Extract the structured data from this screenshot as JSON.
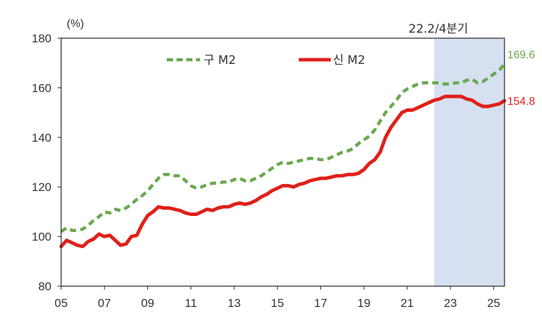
{
  "chart_data": {
    "type": "line",
    "title": "",
    "xlabel": "",
    "ylabel": "",
    "unit_label": "(%)",
    "x_ticks": [
      "05",
      "07",
      "09",
      "11",
      "13",
      "15",
      "17",
      "19",
      "21",
      "23",
      "25"
    ],
    "y_ticks": [
      "80",
      "100",
      "120",
      "140",
      "160",
      "180"
    ],
    "xlim": [
      2005.0,
      2025.5
    ],
    "ylim": [
      80,
      180
    ],
    "grid": false,
    "legend_position": "top-center",
    "shaded_region": {
      "label": "22.2/4분기",
      "x_start": 2022.25,
      "x_end": 2025.5,
      "color": "#d6e0f0"
    },
    "series": [
      {
        "name": "구 M2",
        "color": "#6aa84f",
        "style": "dashed",
        "end_label": "169.6",
        "points": [
          [
            2005.0,
            102.0
          ],
          [
            2005.25,
            103.5
          ],
          [
            2005.5,
            102.5
          ],
          [
            2005.75,
            102.5
          ],
          [
            2006.0,
            103.0
          ],
          [
            2006.25,
            104.5
          ],
          [
            2006.5,
            106.5
          ],
          [
            2006.75,
            108.0
          ],
          [
            2007.0,
            110.0
          ],
          [
            2007.25,
            109.5
          ],
          [
            2007.5,
            111.0
          ],
          [
            2007.75,
            110.5
          ],
          [
            2008.0,
            111.5
          ],
          [
            2008.25,
            113.0
          ],
          [
            2008.5,
            115.0
          ],
          [
            2008.75,
            116.5
          ],
          [
            2009.0,
            118.5
          ],
          [
            2009.25,
            121.0
          ],
          [
            2009.5,
            123.5
          ],
          [
            2009.75,
            125.0
          ],
          [
            2010.0,
            125.0
          ],
          [
            2010.25,
            124.5
          ],
          [
            2010.5,
            124.5
          ],
          [
            2010.75,
            122.5
          ],
          [
            2011.0,
            120.5
          ],
          [
            2011.25,
            119.5
          ],
          [
            2011.5,
            120.0
          ],
          [
            2011.75,
            121.0
          ],
          [
            2012.0,
            121.5
          ],
          [
            2012.25,
            121.5
          ],
          [
            2012.5,
            122.0
          ],
          [
            2012.75,
            122.0
          ],
          [
            2013.0,
            123.0
          ],
          [
            2013.25,
            123.5
          ],
          [
            2013.5,
            122.5
          ],
          [
            2013.75,
            122.5
          ],
          [
            2014.0,
            123.5
          ],
          [
            2014.25,
            124.5
          ],
          [
            2014.5,
            126.0
          ],
          [
            2014.75,
            127.5
          ],
          [
            2015.0,
            129.0
          ],
          [
            2015.25,
            130.0
          ],
          [
            2015.5,
            129.5
          ],
          [
            2015.75,
            130.0
          ],
          [
            2016.0,
            130.5
          ],
          [
            2016.25,
            131.0
          ],
          [
            2016.5,
            131.5
          ],
          [
            2016.75,
            131.5
          ],
          [
            2017.0,
            131.0
          ],
          [
            2017.25,
            131.0
          ],
          [
            2017.5,
            132.0
          ],
          [
            2017.75,
            133.0
          ],
          [
            2018.0,
            134.0
          ],
          [
            2018.25,
            134.5
          ],
          [
            2018.5,
            135.5
          ],
          [
            2018.75,
            137.5
          ],
          [
            2019.0,
            139.0
          ],
          [
            2019.25,
            140.5
          ],
          [
            2019.5,
            143.0
          ],
          [
            2019.75,
            146.5
          ],
          [
            2020.0,
            150.0
          ],
          [
            2020.25,
            152.5
          ],
          [
            2020.5,
            155.0
          ],
          [
            2020.75,
            158.0
          ],
          [
            2021.0,
            159.5
          ],
          [
            2021.25,
            160.5
          ],
          [
            2021.5,
            161.5
          ],
          [
            2021.75,
            162.0
          ],
          [
            2022.0,
            162.0
          ],
          [
            2022.25,
            162.0
          ],
          [
            2022.5,
            162.0
          ],
          [
            2022.75,
            161.5
          ],
          [
            2023.0,
            161.5
          ],
          [
            2023.25,
            162.0
          ],
          [
            2023.5,
            162.0
          ],
          [
            2023.75,
            163.0
          ],
          [
            2024.0,
            163.5
          ],
          [
            2024.25,
            162.0
          ],
          [
            2024.5,
            162.5
          ],
          [
            2024.75,
            164.0
          ],
          [
            2025.0,
            165.5
          ],
          [
            2025.25,
            167.0
          ],
          [
            2025.5,
            169.6
          ]
        ]
      },
      {
        "name": "신 M2",
        "color": "#e0201b",
        "style": "solid",
        "end_label": "154.8",
        "points": [
          [
            2005.0,
            96.0
          ],
          [
            2005.25,
            98.5
          ],
          [
            2005.5,
            97.5
          ],
          [
            2005.75,
            96.5
          ],
          [
            2006.0,
            96.0
          ],
          [
            2006.25,
            98.0
          ],
          [
            2006.5,
            99.0
          ],
          [
            2006.75,
            101.0
          ],
          [
            2007.0,
            100.0
          ],
          [
            2007.25,
            100.5
          ],
          [
            2007.5,
            98.5
          ],
          [
            2007.75,
            96.5
          ],
          [
            2008.0,
            97.0
          ],
          [
            2008.25,
            100.0
          ],
          [
            2008.5,
            100.5
          ],
          [
            2008.75,
            105.0
          ],
          [
            2009.0,
            108.5
          ],
          [
            2009.25,
            110.0
          ],
          [
            2009.5,
            112.0
          ],
          [
            2009.75,
            111.5
          ],
          [
            2010.0,
            111.5
          ],
          [
            2010.25,
            111.0
          ],
          [
            2010.5,
            110.5
          ],
          [
            2010.75,
            109.5
          ],
          [
            2011.0,
            109.0
          ],
          [
            2011.25,
            109.0
          ],
          [
            2011.5,
            110.0
          ],
          [
            2011.75,
            111.0
          ],
          [
            2012.0,
            110.5
          ],
          [
            2012.25,
            111.5
          ],
          [
            2012.5,
            112.0
          ],
          [
            2012.75,
            112.0
          ],
          [
            2013.0,
            113.0
          ],
          [
            2013.25,
            113.5
          ],
          [
            2013.5,
            113.0
          ],
          [
            2013.75,
            113.5
          ],
          [
            2014.0,
            114.5
          ],
          [
            2014.25,
            116.0
          ],
          [
            2014.5,
            117.0
          ],
          [
            2014.75,
            118.5
          ],
          [
            2015.0,
            119.5
          ],
          [
            2015.25,
            120.5
          ],
          [
            2015.5,
            120.5
          ],
          [
            2015.75,
            120.0
          ],
          [
            2016.0,
            121.0
          ],
          [
            2016.25,
            121.5
          ],
          [
            2016.5,
            122.5
          ],
          [
            2016.75,
            123.0
          ],
          [
            2017.0,
            123.5
          ],
          [
            2017.25,
            123.5
          ],
          [
            2017.5,
            124.0
          ],
          [
            2017.75,
            124.5
          ],
          [
            2018.0,
            124.5
          ],
          [
            2018.25,
            125.0
          ],
          [
            2018.5,
            125.0
          ],
          [
            2018.75,
            125.5
          ],
          [
            2019.0,
            127.0
          ],
          [
            2019.25,
            129.5
          ],
          [
            2019.5,
            131.0
          ],
          [
            2019.75,
            134.0
          ],
          [
            2020.0,
            140.0
          ],
          [
            2020.25,
            144.0
          ],
          [
            2020.5,
            147.0
          ],
          [
            2020.75,
            150.0
          ],
          [
            2021.0,
            151.0
          ],
          [
            2021.25,
            151.0
          ],
          [
            2021.5,
            152.0
          ],
          [
            2021.75,
            153.0
          ],
          [
            2022.0,
            154.0
          ],
          [
            2022.25,
            155.0
          ],
          [
            2022.5,
            155.5
          ],
          [
            2022.75,
            156.5
          ],
          [
            2023.0,
            156.5
          ],
          [
            2023.25,
            156.5
          ],
          [
            2023.5,
            156.5
          ],
          [
            2023.75,
            155.5
          ],
          [
            2024.0,
            155.0
          ],
          [
            2024.25,
            153.5
          ],
          [
            2024.5,
            152.5
          ],
          [
            2024.75,
            152.5
          ],
          [
            2025.0,
            153.0
          ],
          [
            2025.25,
            153.5
          ],
          [
            2025.5,
            154.8
          ]
        ]
      }
    ]
  }
}
